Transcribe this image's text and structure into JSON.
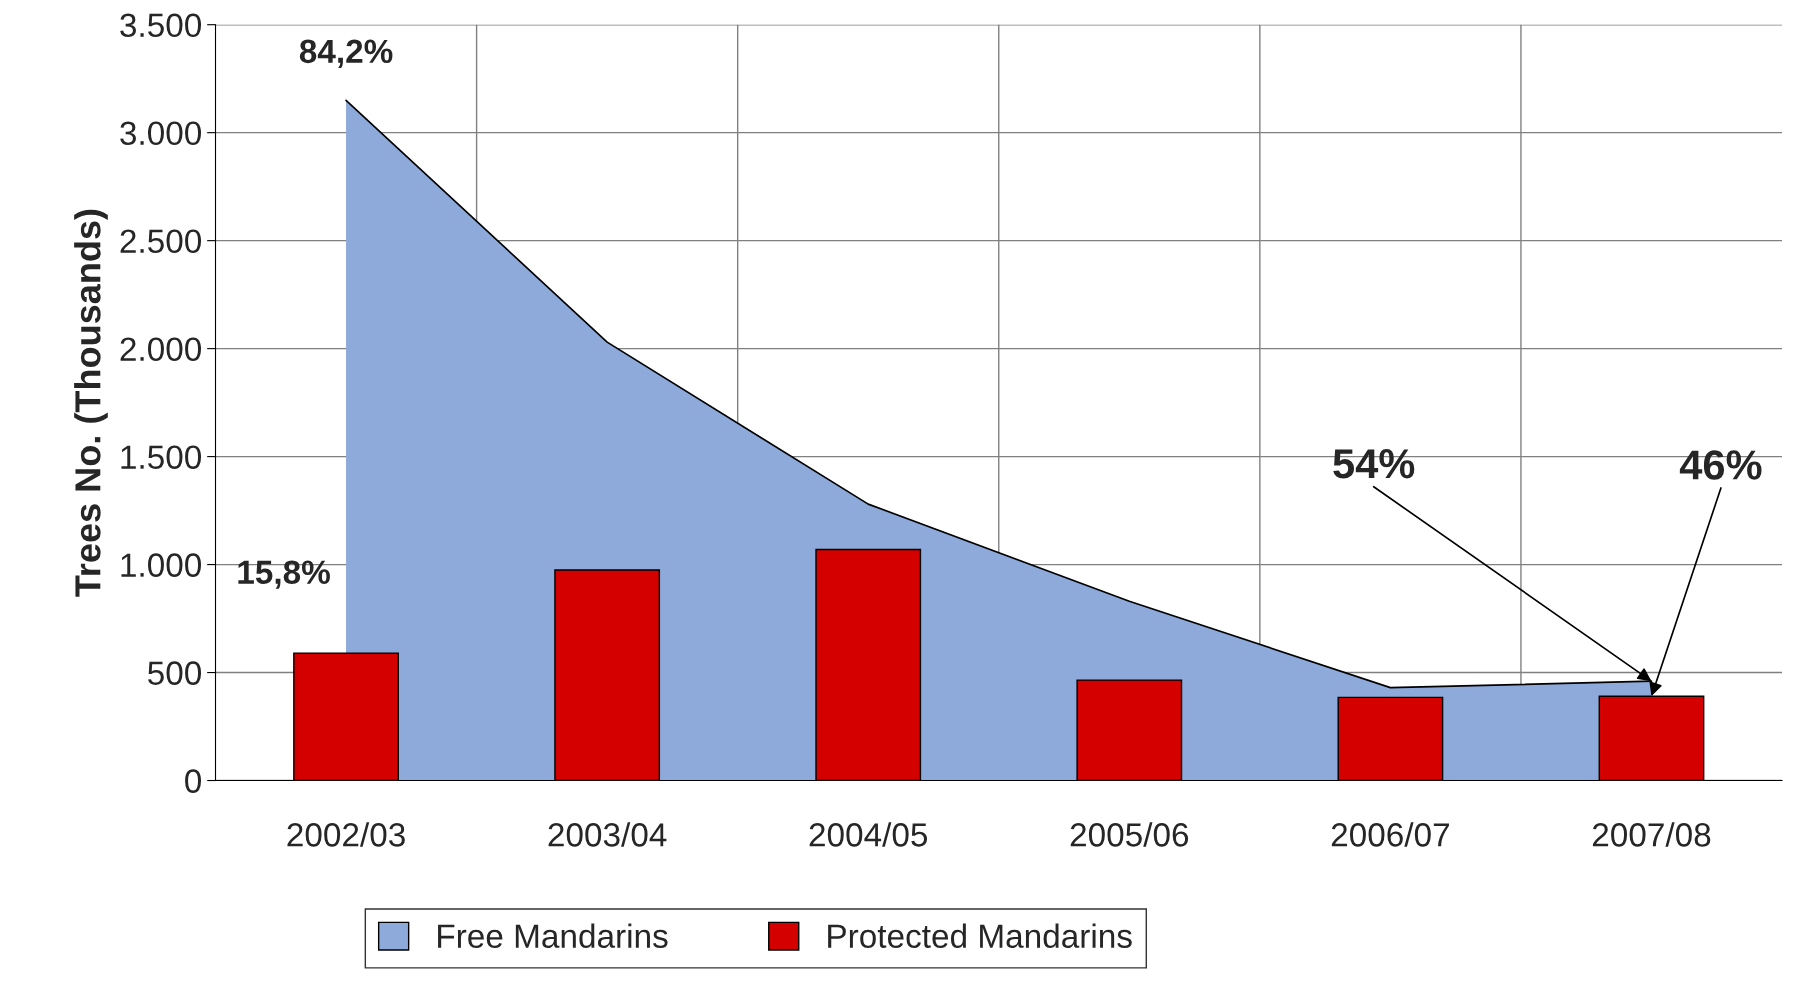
{
  "chart_data": {
    "type": "bar",
    "ylabel": "Trees No. (Thousands)",
    "categories": [
      "2002/03",
      "2003/04",
      "2004/05",
      "2005/06",
      "2006/07",
      "2007/08"
    ],
    "series": [
      {
        "name": "Free Mandarins",
        "type": "area",
        "color": "#8eaadb",
        "values": [
          3150,
          2030,
          1280,
          830,
          430,
          460
        ]
      },
      {
        "name": "Protected Mandarins",
        "color": "#d40000",
        "values": [
          590,
          975,
          1070,
          465,
          385,
          390
        ]
      }
    ],
    "ylim": [
      0,
      3500
    ],
    "yticks": [
      0,
      500,
      {
        "value": 1000,
        "label": "1.000"
      },
      {
        "value": 1500,
        "label": "1.500"
      },
      {
        "value": 2000,
        "label": "2.000"
      },
      {
        "value": 2500,
        "label": "2.500"
      },
      {
        "value": 3000,
        "label": "3.000"
      },
      {
        "value": 3500,
        "label": "3.500"
      }
    ],
    "annotations": [
      {
        "text": "84,2%",
        "x": "2002/03",
        "y": 3150
      },
      {
        "text": "15,8%",
        "x": "2002/03",
        "y": 590
      },
      {
        "text": "54%",
        "x": "2007/08",
        "y": 460
      },
      {
        "text": "46%",
        "x": "2007/08",
        "y": 390
      }
    ],
    "grid": true,
    "legend": "bottom"
  }
}
